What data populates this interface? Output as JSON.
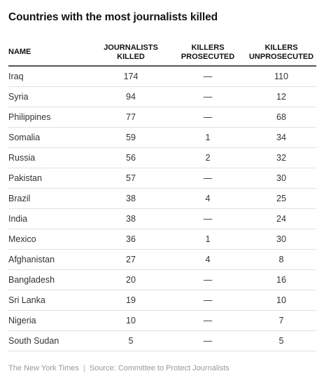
{
  "chart_data": {
    "type": "table",
    "title": "Countries with the most journalists killed",
    "columns": [
      "NAME",
      "JOURNALISTS KILLED",
      "KILLERS PROSECUTED",
      "KILLERS UNPROSECUTED"
    ],
    "rows": [
      [
        "Iraq",
        "174",
        "—",
        "110"
      ],
      [
        "Syria",
        "94",
        "—",
        "12"
      ],
      [
        "Philippines",
        "77",
        "—",
        "68"
      ],
      [
        "Somalia",
        "59",
        "1",
        "34"
      ],
      [
        "Russia",
        "56",
        "2",
        "32"
      ],
      [
        "Pakistan",
        "57",
        "—",
        "30"
      ],
      [
        "Brazil",
        "38",
        "4",
        "25"
      ],
      [
        "India",
        "38",
        "—",
        "24"
      ],
      [
        "Mexico",
        "36",
        "1",
        "30"
      ],
      [
        "Afghanistan",
        "27",
        "4",
        "8"
      ],
      [
        "Bangladesh",
        "20",
        "—",
        "16"
      ],
      [
        "Sri Lanka",
        "19",
        "—",
        "10"
      ],
      [
        "Nigeria",
        "10",
        "—",
        "7"
      ],
      [
        "South Sudan",
        "5",
        "—",
        "5"
      ]
    ]
  },
  "footer": {
    "publisher": "The New York Times",
    "separator": "|",
    "source": "Source: Committee to Protect Journalists"
  }
}
